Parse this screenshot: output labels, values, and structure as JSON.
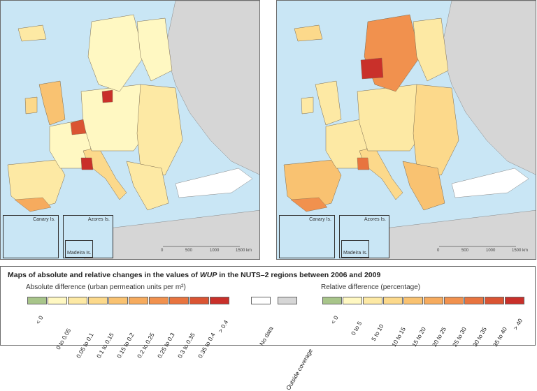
{
  "insets": {
    "canary": "Canary Is.",
    "azores": "Azores Is.",
    "madeira": "Madeira Is."
  },
  "scale": {
    "zero": "0",
    "mid": "500",
    "max": "1000",
    "end": "1500 km"
  },
  "legend": {
    "title_prefix": "Maps of absolute and relative changes in the values of ",
    "title_em": "WUP",
    "title_suffix": " in the NUTS–2 regions between 2006 and 2009",
    "absolute_title": "Absolute difference (urban permeation units per m²)",
    "relative_title": "Relative difference (percentage)",
    "absolute_classes": [
      "< 0",
      "0 to 0.05",
      "0.05 to 0.1",
      "0.1 to 0.15",
      "0.15 to 0.2",
      "0.2 to 0.25",
      "0.25 to 0.3",
      "0.3 to 0.35",
      "0.35 to 0.4",
      "> 0.4"
    ],
    "relative_classes": [
      "< 0",
      "0 to 5",
      "5 to 10",
      "10 to 15",
      "15 to 20",
      "20 to 25",
      "25 to 30",
      "30 to 35",
      "35 to 40",
      "> 40"
    ],
    "no_data": "No data",
    "outside": "Outside coverage"
  },
  "colors": {
    "class_colors": [
      "#a8c58a",
      "#fff8c2",
      "#fde9a4",
      "#fcd98b",
      "#f9c271",
      "#f6ab5e",
      "#f1914e",
      "#e8743f",
      "#da5433",
      "#c9302a"
    ],
    "no_data": "#ffffff",
    "outside": "#d6d6d6",
    "sea": "#c9e6f5"
  }
}
